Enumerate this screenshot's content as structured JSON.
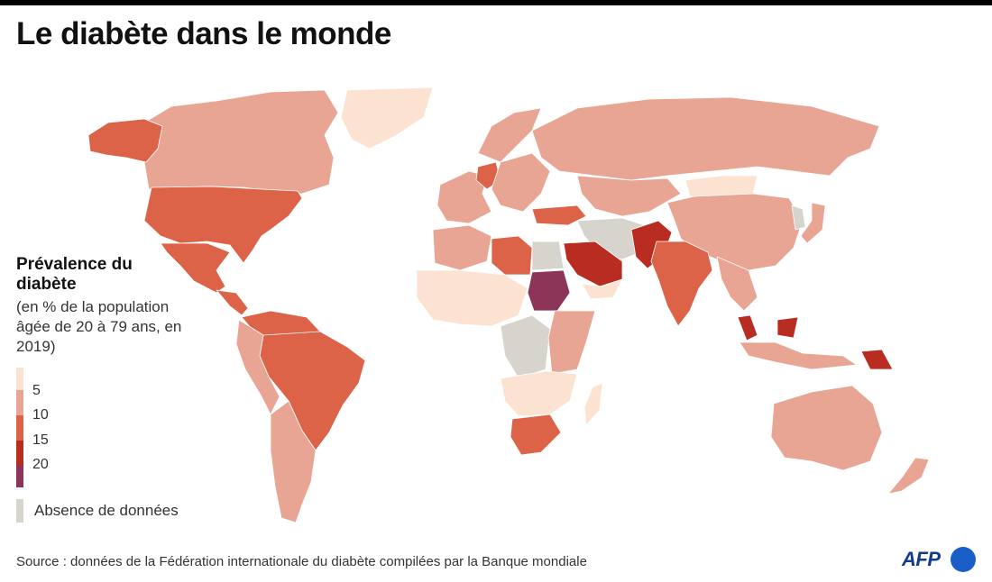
{
  "title": "Le diabète dans le monde",
  "legend": {
    "title": "Prévalence du diabète",
    "subtitle": "(en % de la population âgée de 20 à 79 ans, en 2019)",
    "ticks": [
      "5",
      "10",
      "15",
      "20"
    ],
    "no_data_label": "Absence de données",
    "colors": {
      "below_5": "#fce3d1",
      "5_10": "#e9a593",
      "10_15": "#dc6347",
      "15_20": "#b82c21",
      "above_20": "#8c3558",
      "no_data": "#d7d3cd"
    }
  },
  "source": "Source : données de la Fédération internationale du diabète compilées par la Banque mondiale",
  "logo": "AFP",
  "regions": [
    {
      "id": "greenland",
      "class": "below_5"
    },
    {
      "id": "canada",
      "class": "5_10"
    },
    {
      "id": "alaska",
      "class": "10_15"
    },
    {
      "id": "usa",
      "class": "10_15"
    },
    {
      "id": "mexico",
      "class": "10_15"
    },
    {
      "id": "central-america",
      "class": "10_15"
    },
    {
      "id": "venezuela-guyanas",
      "class": "10_15"
    },
    {
      "id": "brazil",
      "class": "10_15"
    },
    {
      "id": "andes",
      "class": "5_10"
    },
    {
      "id": "southern-cone",
      "class": "5_10"
    },
    {
      "id": "western-europe",
      "class": "5_10"
    },
    {
      "id": "germany",
      "class": "10_15"
    },
    {
      "id": "scandinavia",
      "class": "5_10"
    },
    {
      "id": "eastern-europe",
      "class": "5_10"
    },
    {
      "id": "turkey",
      "class": "10_15"
    },
    {
      "id": "russia",
      "class": "5_10"
    },
    {
      "id": "mongolia",
      "class": "below_5"
    },
    {
      "id": "kazakhstan",
      "class": "5_10"
    },
    {
      "id": "iran-afghanistan",
      "class": "no_data"
    },
    {
      "id": "pakistan",
      "class": "15_20"
    },
    {
      "id": "india",
      "class": "10_15"
    },
    {
      "id": "china",
      "class": "5_10"
    },
    {
      "id": "korea",
      "class": "no_data"
    },
    {
      "id": "japan",
      "class": "5_10"
    },
    {
      "id": "saudi-arabia",
      "class": "15_20"
    },
    {
      "id": "yemen-oman",
      "class": "below_5"
    },
    {
      "id": "maghreb",
      "class": "5_10"
    },
    {
      "id": "libya",
      "class": "10_15"
    },
    {
      "id": "egypt",
      "class": "no_data"
    },
    {
      "id": "sudan",
      "class": "above_20"
    },
    {
      "id": "west-africa",
      "class": "below_5"
    },
    {
      "id": "central-africa",
      "class": "no_data"
    },
    {
      "id": "east-africa",
      "class": "5_10"
    },
    {
      "id": "southern-africa",
      "class": "below_5"
    },
    {
      "id": "south-africa",
      "class": "10_15"
    },
    {
      "id": "madagascar",
      "class": "below_5"
    },
    {
      "id": "southeast-asia",
      "class": "5_10"
    },
    {
      "id": "malaysia",
      "class": "15_20"
    },
    {
      "id": "indonesia",
      "class": "5_10"
    },
    {
      "id": "papua-new-guinea",
      "class": "15_20"
    },
    {
      "id": "australia",
      "class": "5_10"
    },
    {
      "id": "new-zealand",
      "class": "5_10"
    }
  ]
}
